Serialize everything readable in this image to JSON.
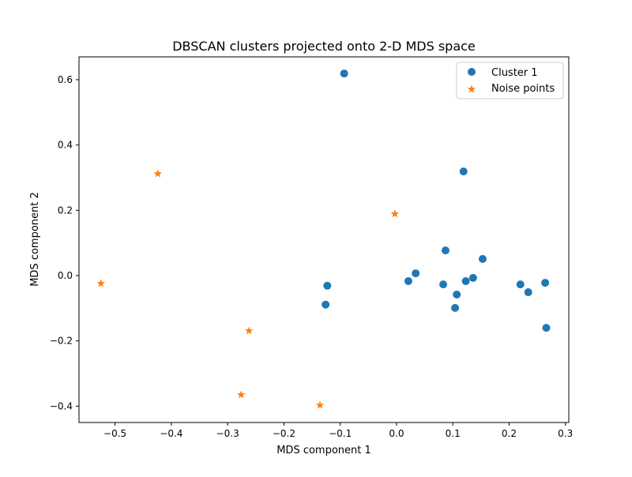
{
  "chart_data": {
    "type": "scatter",
    "title": "DBSCAN clusters projected onto 2-D MDS space",
    "xlabel": "MDS component 1",
    "ylabel": "MDS component 2",
    "xlim": [
      -0.564,
      0.306
    ],
    "ylim": [
      -0.45,
      0.67
    ],
    "xticks": [
      -0.5,
      -0.4,
      -0.3,
      -0.2,
      -0.1,
      0.0,
      0.1,
      0.2,
      0.3
    ],
    "xtick_labels": [
      "−0.5",
      "−0.4",
      "−0.3",
      "−0.2",
      "−0.1",
      "0.0",
      "0.1",
      "0.2",
      "0.3"
    ],
    "yticks": [
      -0.4,
      -0.2,
      0.0,
      0.2,
      0.4,
      0.6
    ],
    "ytick_labels": [
      "−0.4",
      "−0.2",
      "0.0",
      "0.2",
      "0.4",
      "0.6"
    ],
    "grid": false,
    "legend_position": "top-right",
    "series": [
      {
        "name": "Cluster 1",
        "marker": "circle",
        "color": "#1f77b4",
        "points": [
          [
            -0.093,
            0.619
          ],
          [
            0.119,
            0.319
          ],
          [
            0.087,
            0.077
          ],
          [
            0.153,
            0.051
          ],
          [
            0.034,
            0.007
          ],
          [
            0.021,
            -0.017
          ],
          [
            0.083,
            -0.027
          ],
          [
            0.123,
            -0.017
          ],
          [
            0.136,
            -0.007
          ],
          [
            0.107,
            -0.058
          ],
          [
            0.104,
            -0.099
          ],
          [
            0.22,
            -0.027
          ],
          [
            0.234,
            -0.051
          ],
          [
            0.264,
            -0.022
          ],
          [
            0.266,
            -0.16
          ],
          [
            -0.123,
            -0.031
          ],
          [
            -0.126,
            -0.089
          ]
        ]
      },
      {
        "name": "Noise points",
        "marker": "star",
        "color": "#ff7f0e",
        "points": [
          [
            -0.424,
            0.312
          ],
          [
            -0.525,
            -0.024
          ],
          [
            -0.003,
            0.189
          ],
          [
            -0.262,
            -0.169
          ],
          [
            -0.276,
            -0.365
          ],
          [
            -0.136,
            -0.397
          ]
        ]
      }
    ]
  }
}
